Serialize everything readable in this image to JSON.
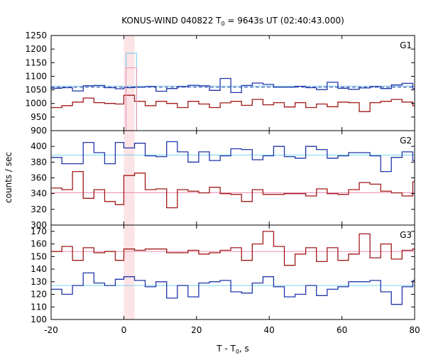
{
  "chart_data": {
    "type": "line",
    "title": "KONUS-WIND 040822 T",
    "title_sub": "0",
    "title_rest": " = 9643s UT (02:40:43.000)",
    "xlabel": "T - T",
    "xlabel_sub": "0",
    "xlabel_rest": ", s",
    "ylabel": "counts / sec",
    "xlim": [
      -20,
      80
    ],
    "xticks": [
      -20,
      0,
      20,
      40,
      60,
      80
    ],
    "shade": {
      "x0": 0,
      "x1": 2.944,
      "color": "#fbe3e6"
    },
    "x_bin_starts": [
      -20,
      -17.056,
      -14.112,
      -11.168,
      -8.224,
      -5.28,
      -2.336,
      0,
      2.944,
      5.888,
      8.832,
      11.776,
      14.72,
      17.664,
      20.608,
      23.552,
      26.496,
      29.44,
      32.384,
      35.328,
      38.272,
      41.216,
      44.16,
      47.104,
      50.048,
      52.992,
      55.936,
      58.88,
      61.824,
      64.768,
      67.712,
      70.656,
      73.6,
      76.544,
      79.488
    ],
    "x_end": 80,
    "panels": [
      {
        "label": "G1",
        "ylim": [
          900,
          1250
        ],
        "yticks": [
          900,
          950,
          1000,
          1050,
          1100,
          1150,
          1200,
          1250
        ],
        "series": [
          {
            "color": "#1f35a8",
            "values": [
              1056,
              1058,
              1046,
              1065,
              1066,
              1058,
              1054,
              1058,
              1060,
              1062,
              1045,
              1055,
              1062,
              1067,
              1065,
              1048,
              1092,
              1040,
              1066,
              1075,
              1070,
              1060,
              1060,
              1063,
              1058,
              1051,
              1078,
              1056,
              1052,
              1057,
              1062,
              1055,
              1068,
              1074,
              1055
            ]
          },
          {
            "color": "#a01818",
            "values": [
              985,
              992,
              1005,
              1020,
              1003,
              1000,
              998,
              1030,
              1008,
              992,
              1008,
              1000,
              985,
              1008,
              998,
              985,
              1002,
              1008,
              993,
              1015,
              995,
              1003,
              987,
              1003,
              985,
              998,
              988,
              1005,
              1003,
              970,
              1003,
              1008,
              1015,
              1005,
              992
            ]
          }
        ],
        "bg_lines": [
          {
            "color": "#1f35a8",
            "value": 1060,
            "dashed": true
          },
          {
            "color": "#7ad3ee",
            "value": 1064,
            "dashed": false
          }
        ],
        "extra_steps": [
          {
            "color": "#6fc8ea",
            "x0": 0.6,
            "x1": 3.5,
            "value": 1185
          },
          {
            "color": "#ea8fb2",
            "x0": 0.6,
            "x1": 3.5,
            "value": 1131
          }
        ]
      },
      {
        "label": "G2",
        "ylim": [
          300,
          420
        ],
        "yticks": [
          300,
          320,
          340,
          360,
          380,
          400
        ],
        "series": [
          {
            "color": "#1f35a8",
            "values": [
              386,
              378,
              378,
              405,
              392,
              378,
              405,
              398,
              404,
              388,
              387,
              406,
              393,
              380,
              393,
              382,
              388,
              397,
              396,
              383,
              388,
              400,
              387,
              385,
              400,
              396,
              385,
              388,
              392,
              392,
              388,
              368,
              386,
              393,
              382
            ]
          },
          {
            "color": "#a01818",
            "values": [
              347,
              345,
              368,
              334,
              345,
              330,
              326,
              363,
              366,
              345,
              346,
              322,
              345,
              343,
              341,
              348,
              340,
              339,
              330,
              345,
              339,
              339,
              340,
              340,
              337,
              346,
              340,
              339,
              345,
              354,
              352,
              343,
              341,
              337,
              355
            ]
          }
        ],
        "bg_lines": [
          {
            "color": "#7ad3ee",
            "value": 389,
            "dashed": false
          },
          {
            "color": "#ea8fb2",
            "value": 341,
            "dashed": false
          }
        ],
        "extra_steps": []
      },
      {
        "label": "G3",
        "ylim": [
          100,
          175
        ],
        "yticks": [
          100,
          110,
          120,
          130,
          140,
          150,
          160,
          170
        ],
        "series": [
          {
            "color": "#a01818",
            "values": [
              154,
              158,
              147,
              157,
              153,
              154,
              147,
              156,
              155,
              156,
              156,
              153,
              153,
              155,
              152,
              153,
              155,
              157,
              147,
              160,
              170,
              158,
              143,
              152,
              157,
              146,
              157,
              147,
              152,
              168,
              149,
              160,
              148,
              155,
              156
            ]
          },
          {
            "color": "#1f35a8",
            "values": [
              124,
              120,
              127,
              137,
              129,
              127,
              132,
              134,
              131,
              126,
              130,
              117,
              127,
              118,
              129,
              130,
              131,
              122,
              121,
              129,
              134,
              126,
              118,
              120,
              127,
              119,
              124,
              126,
              130,
              130,
              131,
              122,
              112,
              126,
              131
            ]
          }
        ],
        "bg_lines": [
          {
            "color": "#7ad3ee",
            "value": 127,
            "dashed": false
          },
          {
            "color": "#ea8fb2",
            "value": 154,
            "dashed": false
          }
        ],
        "extra_steps": []
      }
    ],
    "grid": false
  }
}
